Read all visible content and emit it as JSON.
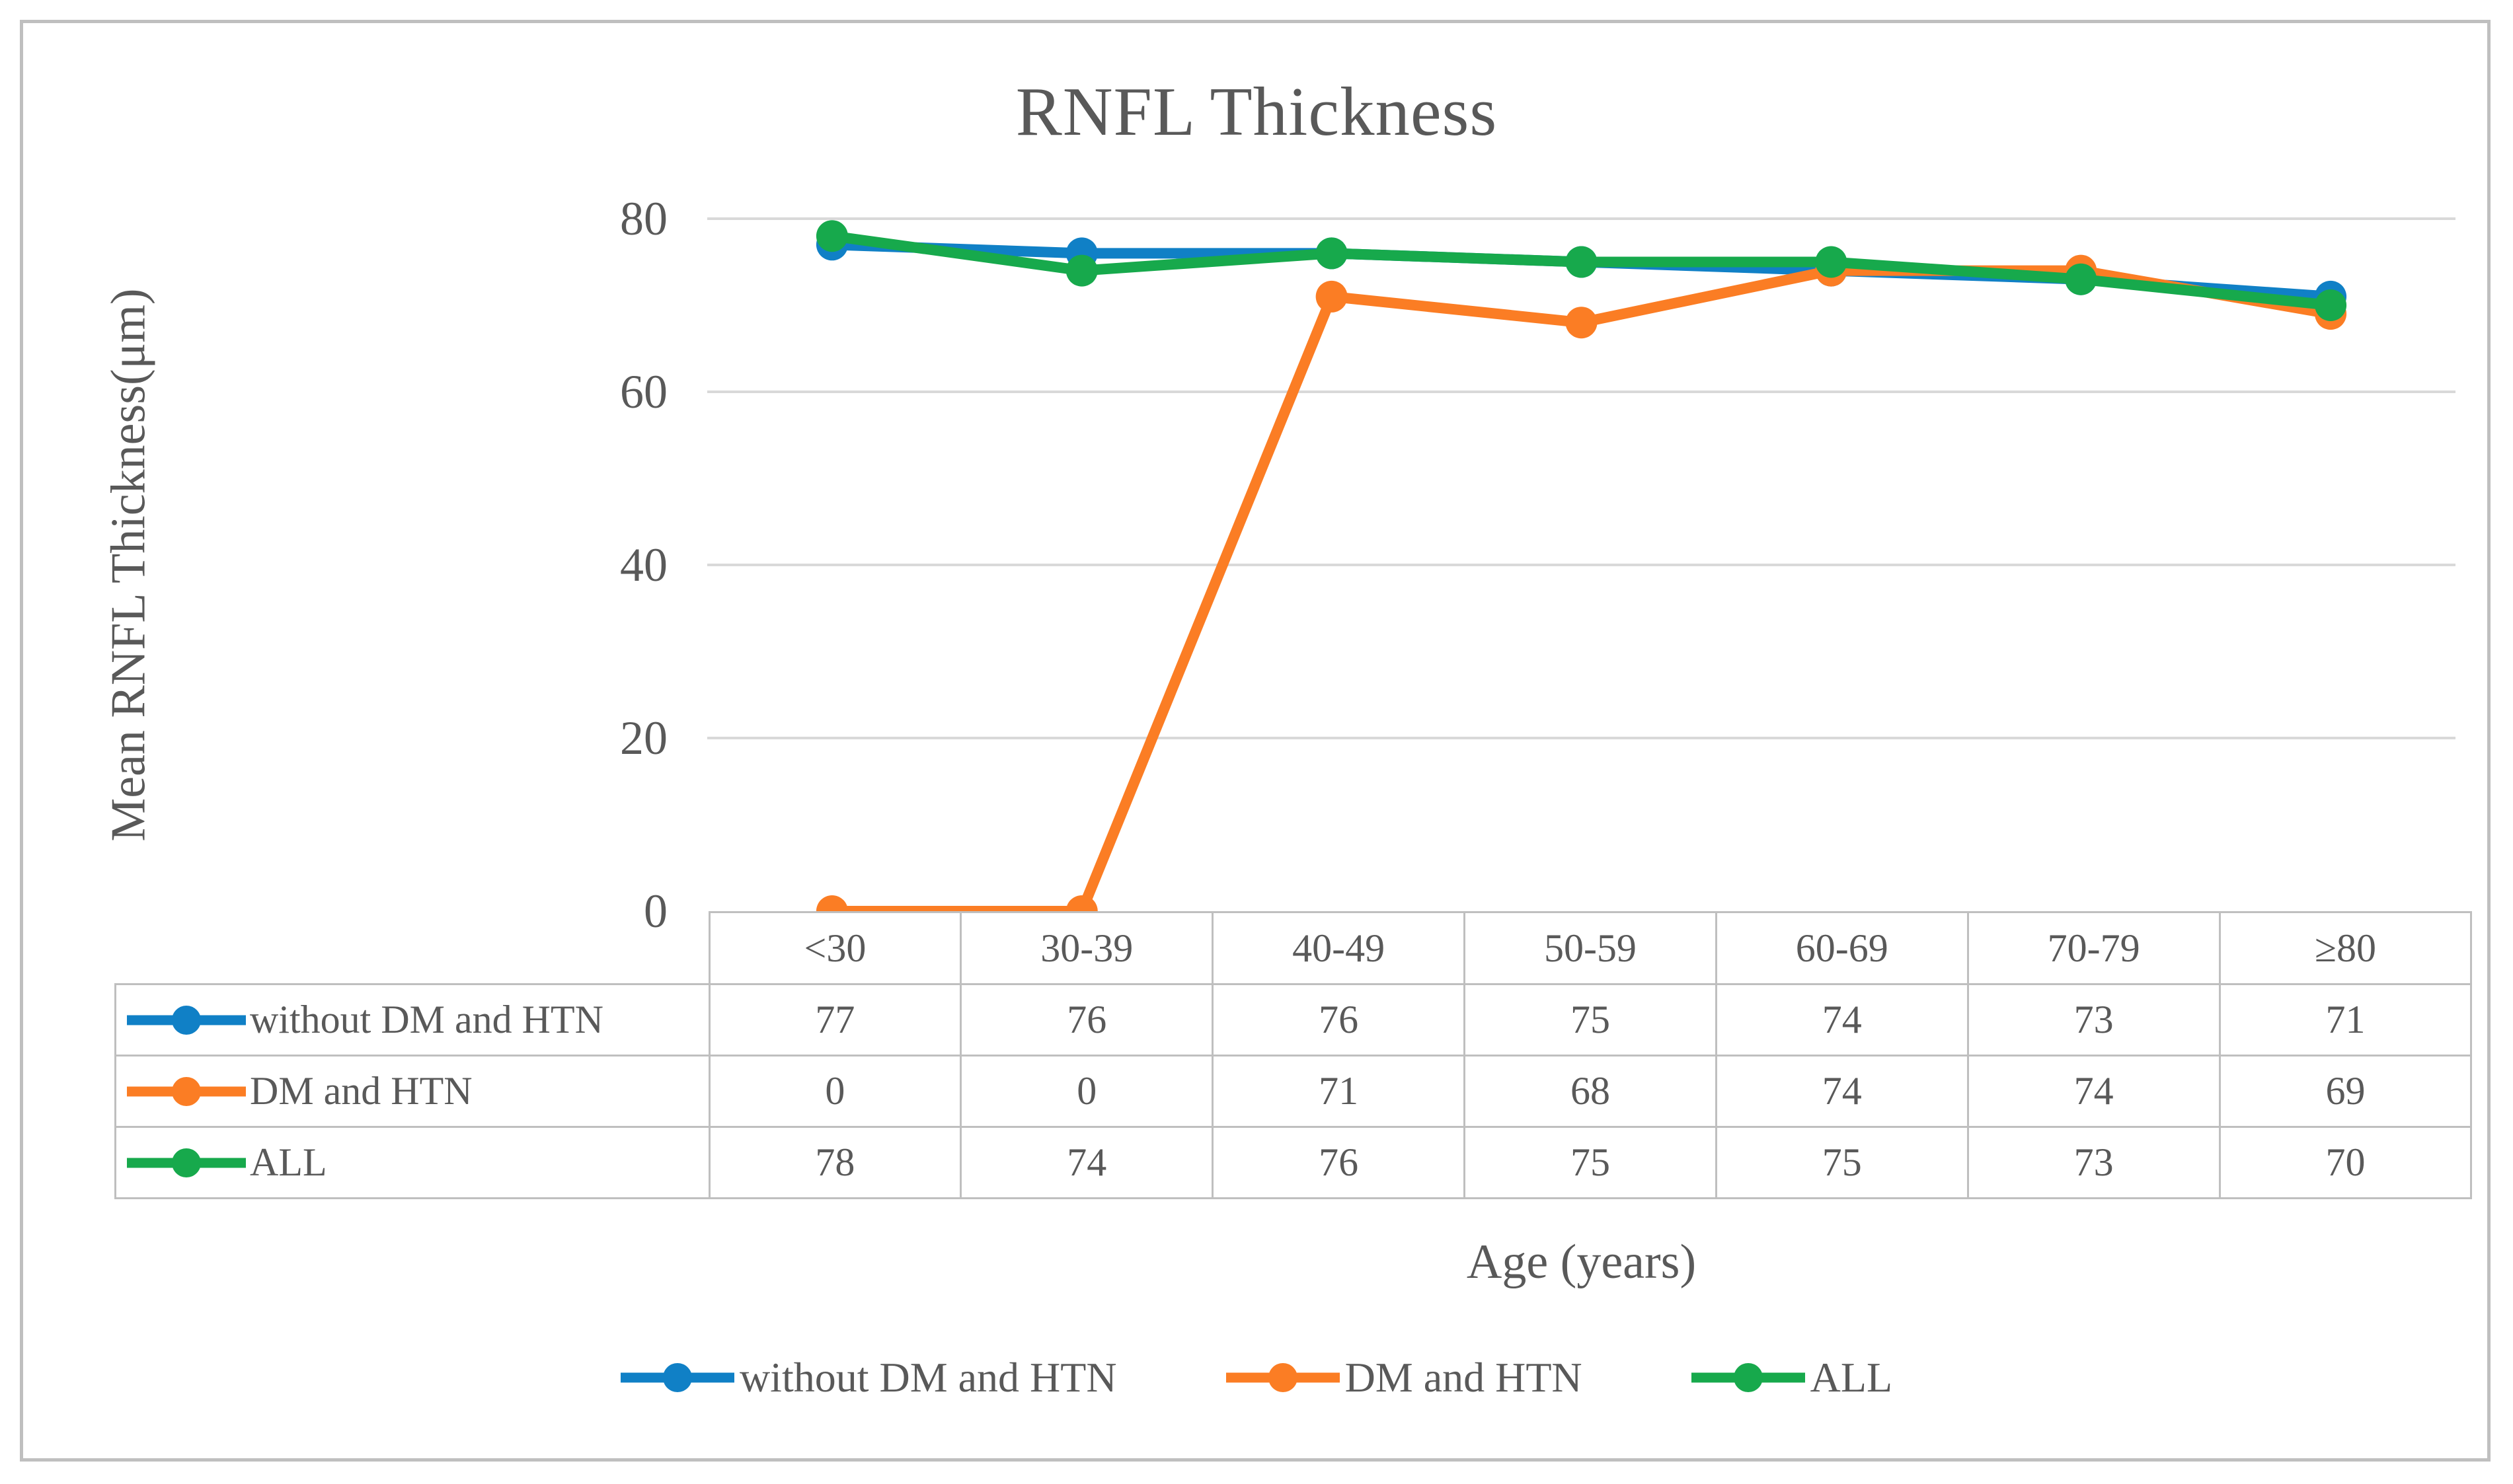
{
  "chart_data": {
    "type": "line",
    "title": "RNFL Thickness",
    "xlabel": "Age (years)",
    "ylabel": "Mean RNFL Thickness(μm)",
    "categories": [
      "<30",
      "30-39",
      "40-49",
      "50-59",
      "60-69",
      "70-79",
      "≥80"
    ],
    "series": [
      {
        "name": "without DM and HTN",
        "color": "#1080C6",
        "values": [
          77,
          76,
          76,
          75,
          74,
          73,
          71
        ]
      },
      {
        "name": "DM and HTN",
        "color": "#FB7D24",
        "values": [
          0,
          0,
          71,
          68,
          74,
          74,
          69
        ]
      },
      {
        "name": "ALL",
        "color": "#17A94C",
        "values": [
          78,
          74,
          76,
          75,
          75,
          73,
          70
        ]
      }
    ],
    "ylim": [
      0,
      80
    ],
    "yticks": [
      0,
      20,
      40,
      60,
      80
    ],
    "grid": true,
    "legend_position": "bottom",
    "data_table_shown": true
  },
  "colors": {
    "text": "#595959",
    "gridline": "#D9D9D9",
    "table_border": "#BFBFBF",
    "figure_border": "#BFBFBF",
    "background": "#FFFFFF"
  }
}
